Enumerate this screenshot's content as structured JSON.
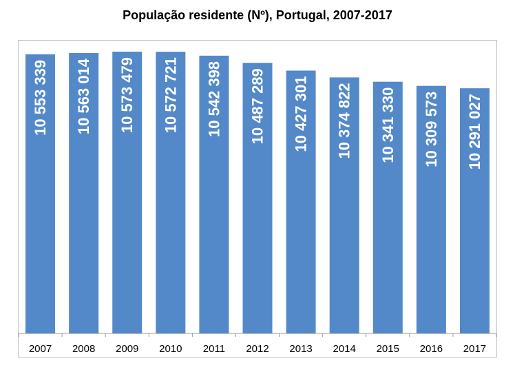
{
  "chart_data": {
    "type": "bar",
    "title": "População residente (Nº), Portugal, 2007-2017",
    "xlabel": "",
    "ylabel": "",
    "categories": [
      "2007",
      "2008",
      "2009",
      "2010",
      "2011",
      "2012",
      "2013",
      "2014",
      "2015",
      "2016",
      "2017"
    ],
    "values": [
      10553339,
      10563014,
      10573479,
      10572721,
      10542398,
      10487289,
      10427301,
      10374822,
      10341330,
      10309573,
      10291027
    ],
    "data_labels": [
      "10 553 339",
      "10 563 014",
      "10 573 479",
      "10 572 721",
      "10 542 398",
      "10 487 289",
      "10 427 301",
      "10 374 822",
      "10 341 330",
      "10 309 573",
      "10 291 027"
    ],
    "ylim": [
      8400000,
      10600000
    ],
    "bar_color": "#5389c9",
    "label_color": "#ffffff",
    "grid": false,
    "legend": "none",
    "y_axis_visible": false
  }
}
